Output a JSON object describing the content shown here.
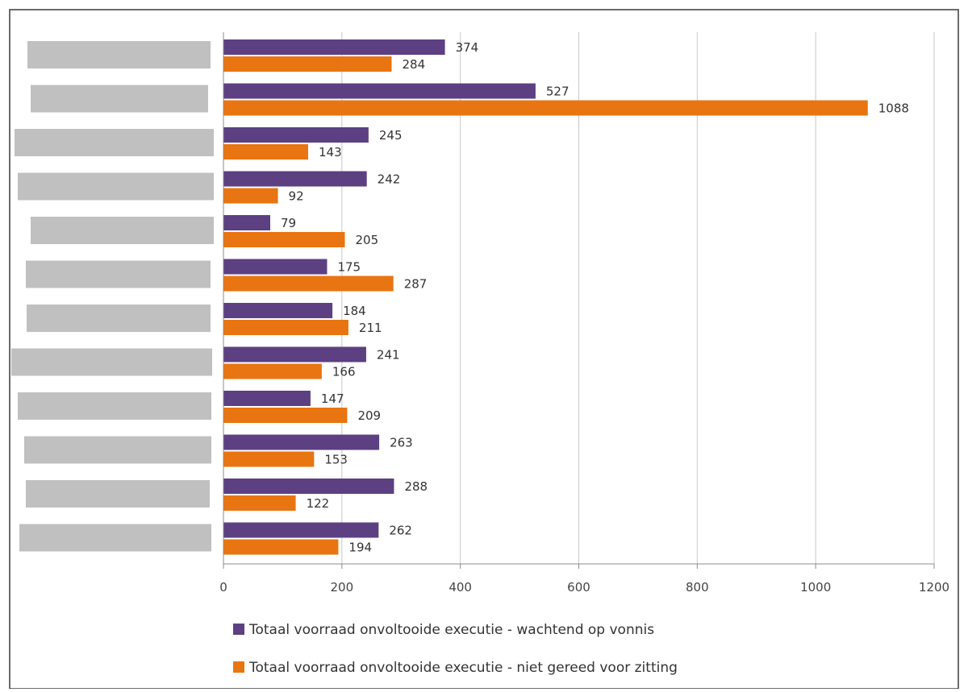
{
  "chart_data": {
    "type": "bar",
    "orientation": "horizontal",
    "categories": [
      "",
      "",
      "",
      "",
      "",
      "",
      "",
      "",
      "",
      "",
      "",
      ""
    ],
    "series": [
      {
        "name": "Totaal voorraad onvoltooide executie - wachtend op vonnis",
        "color": "#5c4082",
        "values": [
          374,
          527,
          245,
          242,
          79,
          175,
          184,
          241,
          147,
          263,
          288,
          262
        ]
      },
      {
        "name": "Totaal voorraad onvoltooide executie - niet gereed voor zitting",
        "color": "#e87511",
        "values": [
          284,
          1088,
          143,
          92,
          205,
          287,
          211,
          166,
          209,
          153,
          122,
          194
        ]
      }
    ],
    "xlim": [
      0,
      1200
    ],
    "xticks": [
      0,
      200,
      400,
      600,
      800,
      1000,
      1200
    ],
    "grid": true,
    "legend_position": "bottom",
    "category_labels_redacted": true,
    "redaction_color": "#c0c0c0"
  }
}
